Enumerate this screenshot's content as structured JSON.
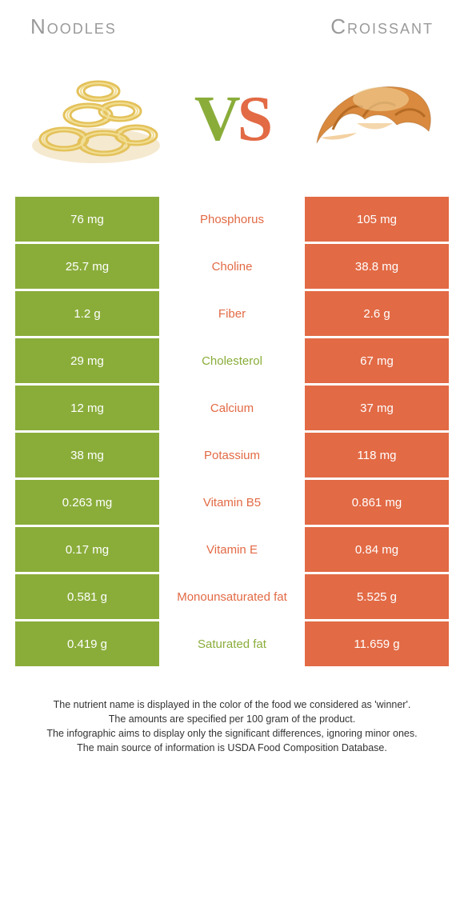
{
  "colors": {
    "left": "#8aad3a",
    "right": "#e26a45",
    "title": "#9a9a9a"
  },
  "header": {
    "left_title": "Noodles",
    "right_title": "Croissant",
    "vs_v": "V",
    "vs_s": "S"
  },
  "rows": [
    {
      "nutrient": "Phosphorus",
      "left": "76 mg",
      "right": "105 mg",
      "winner": "right"
    },
    {
      "nutrient": "Choline",
      "left": "25.7 mg",
      "right": "38.8 mg",
      "winner": "right"
    },
    {
      "nutrient": "Fiber",
      "left": "1.2 g",
      "right": "2.6 g",
      "winner": "right"
    },
    {
      "nutrient": "Cholesterol",
      "left": "29 mg",
      "right": "67 mg",
      "winner": "left"
    },
    {
      "nutrient": "Calcium",
      "left": "12 mg",
      "right": "37 mg",
      "winner": "right"
    },
    {
      "nutrient": "Potassium",
      "left": "38 mg",
      "right": "118 mg",
      "winner": "right"
    },
    {
      "nutrient": "Vitamin B5",
      "left": "0.263 mg",
      "right": "0.861 mg",
      "winner": "right"
    },
    {
      "nutrient": "Vitamin E",
      "left": "0.17 mg",
      "right": "0.84 mg",
      "winner": "right"
    },
    {
      "nutrient": "Monounsaturated fat",
      "left": "0.581 g",
      "right": "5.525 g",
      "winner": "right"
    },
    {
      "nutrient": "Saturated fat",
      "left": "0.419 g",
      "right": "11.659 g",
      "winner": "left"
    }
  ],
  "notes": [
    "The nutrient name is displayed in the color of the food we considered as 'winner'.",
    "The amounts are specified per 100 gram of the product.",
    "The infographic aims to display only the significant differences, ignoring minor ones.",
    "The main source of information is USDA Food Composition Database."
  ]
}
